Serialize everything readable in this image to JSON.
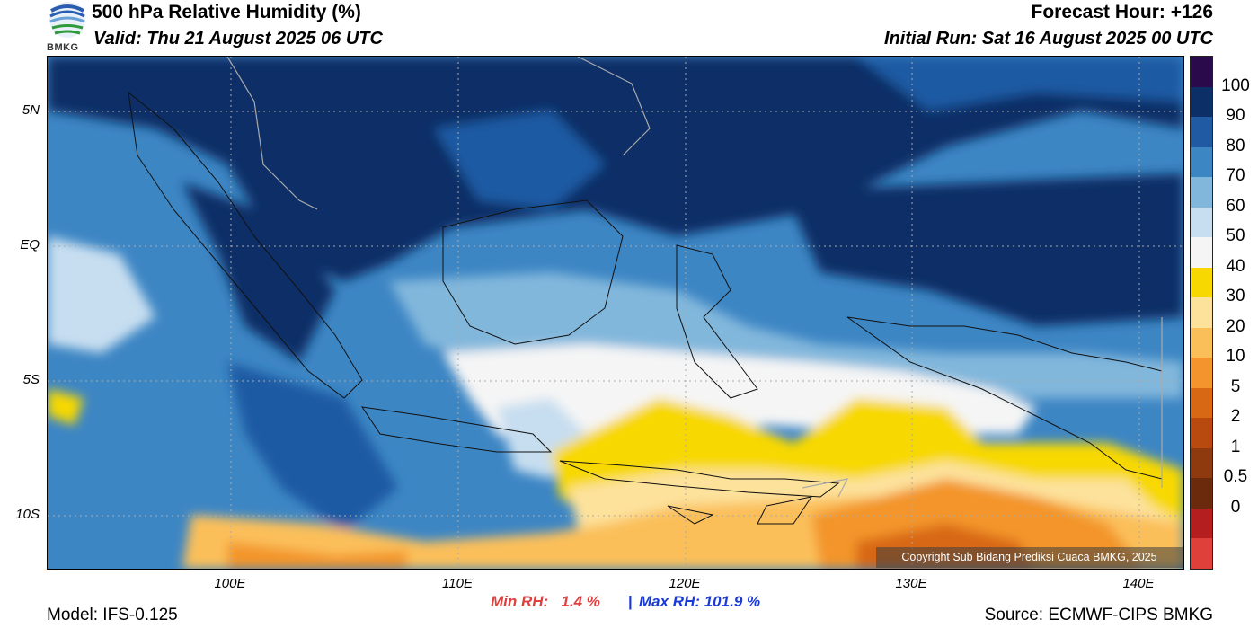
{
  "header": {
    "title": "500 hPa Relative Humidity (%)",
    "valid": "Valid: Thu 21 August 2025 06 UTC",
    "forecast_hour": "Forecast Hour: +126",
    "initial_run": "Initial Run: Sat 16 August 2025 00 UTC",
    "logo_text": "BMKG"
  },
  "map": {
    "lat_labels": [
      "5N",
      "EQ",
      "5S",
      "10S"
    ],
    "lon_labels": [
      "100E",
      "110E",
      "120E",
      "130E",
      "140E"
    ],
    "copyright": "Copyright Sub Bidang Prediksi Cuaca BMKG, 2025"
  },
  "colorbar": {
    "labels": [
      "100",
      "90",
      "80",
      "70",
      "60",
      "50",
      "40",
      "30",
      "20",
      "10",
      "5",
      "2",
      "1",
      "0.5",
      "0"
    ],
    "colors": [
      "#2a0a4a",
      "#0b2f66",
      "#1f5aa3",
      "#3d86c4",
      "#82b7dc",
      "#c7def0",
      "#f5f5f5",
      "#f7d800",
      "#fde29c",
      "#fbbf5a",
      "#f3952c",
      "#d86814",
      "#b84a10",
      "#8f3a0e",
      "#6b2a0c",
      "#b41e1e",
      "#e0403a"
    ]
  },
  "stats": {
    "min_label": "Min RH:",
    "min_value": "1.4 %",
    "separator": "|",
    "max_label": "Max RH: 101.9 %"
  },
  "footer": {
    "model": "Model: IFS-0.125",
    "source": "Source: ECMWF-CIPS BMKG"
  }
}
